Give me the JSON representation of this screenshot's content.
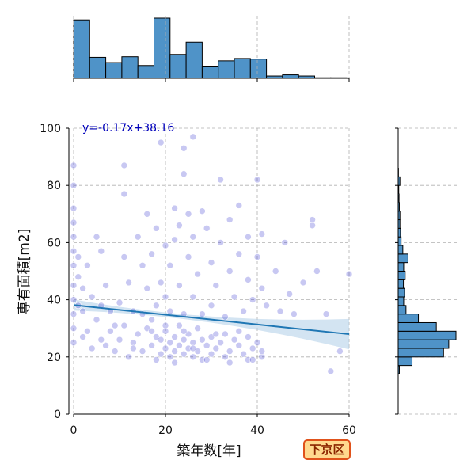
{
  "badge": "下京区",
  "chart_data": {
    "type": "scatter",
    "xlabel": "築年数[年]",
    "ylabel": "専有面積[m2]",
    "xlim": [
      0,
      60
    ],
    "ylim": [
      0,
      100
    ],
    "x_ticks": [
      0,
      20,
      40,
      60
    ],
    "y_ticks": [
      0,
      20,
      40,
      60,
      80,
      100
    ],
    "grid": true,
    "point_color": "#3a3ad0",
    "regression": {
      "label": "y=-0.17x+38.16",
      "slope": -0.17,
      "intercept": 38.16,
      "color": "#1f77b4",
      "ci_color": "#aecde8"
    },
    "histogram_color": "#4f93c8",
    "x_histogram": {
      "bin_edges": [
        0,
        3.5,
        7,
        10.5,
        14,
        17.5,
        21,
        24.5,
        28,
        31.5,
        35,
        38.5,
        42,
        45.5,
        49,
        52.5,
        56,
        59.5
      ],
      "counts": [
        100,
        36,
        27,
        37,
        22,
        103,
        41,
        62,
        21,
        30,
        34,
        33,
        4,
        6,
        4,
        1,
        1
      ]
    },
    "y_histogram": {
      "bin_edges": [
        14,
        17,
        20,
        23,
        26,
        29,
        32,
        35,
        38,
        41,
        44,
        47,
        50,
        53,
        56,
        59,
        62,
        65,
        68,
        71,
        74,
        77,
        80,
        83,
        86
      ],
      "counts": [
        4,
        48,
        157,
        175,
        200,
        132,
        70,
        27,
        19,
        22,
        18,
        24,
        19,
        34,
        16,
        10,
        8,
        6,
        6,
        4,
        3,
        2,
        6,
        1
      ]
    },
    "points": [
      {
        "x": 2,
        "y": 27
      },
      {
        "x": 4,
        "y": 23
      },
      {
        "x": 5,
        "y": 33
      },
      {
        "x": 7,
        "y": 24
      },
      {
        "x": 8,
        "y": 29
      },
      {
        "x": 9,
        "y": 22
      },
      {
        "x": 10,
        "y": 26
      },
      {
        "x": 11,
        "y": 31
      },
      {
        "x": 12,
        "y": 20
      },
      {
        "x": 13,
        "y": 25
      },
      {
        "x": 14,
        "y": 28
      },
      {
        "x": 15,
        "y": 22
      },
      {
        "x": 16,
        "y": 30
      },
      {
        "x": 17,
        "y": 24
      },
      {
        "x": 18,
        "y": 27
      },
      {
        "x": 19,
        "y": 21
      },
      {
        "x": 19,
        "y": 26
      },
      {
        "x": 20,
        "y": 23
      },
      {
        "x": 20,
        "y": 29
      },
      {
        "x": 21,
        "y": 20
      },
      {
        "x": 21,
        "y": 25
      },
      {
        "x": 22,
        "y": 27
      },
      {
        "x": 22,
        "y": 22
      },
      {
        "x": 23,
        "y": 31
      },
      {
        "x": 23,
        "y": 24
      },
      {
        "x": 24,
        "y": 21
      },
      {
        "x": 24,
        "y": 26
      },
      {
        "x": 25,
        "y": 28
      },
      {
        "x": 25,
        "y": 23
      },
      {
        "x": 26,
        "y": 20
      },
      {
        "x": 26,
        "y": 25
      },
      {
        "x": 27,
        "y": 30
      },
      {
        "x": 27,
        "y": 22
      },
      {
        "x": 28,
        "y": 26
      },
      {
        "x": 28,
        "y": 19
      },
      {
        "x": 29,
        "y": 24
      },
      {
        "x": 30,
        "y": 27
      },
      {
        "x": 30,
        "y": 21
      },
      {
        "x": 31,
        "y": 23
      },
      {
        "x": 32,
        "y": 25
      },
      {
        "x": 33,
        "y": 20
      },
      {
        "x": 33,
        "y": 28
      },
      {
        "x": 34,
        "y": 22
      },
      {
        "x": 35,
        "y": 26
      },
      {
        "x": 36,
        "y": 24
      },
      {
        "x": 37,
        "y": 21
      },
      {
        "x": 38,
        "y": 27
      },
      {
        "x": 38,
        "y": 19
      },
      {
        "x": 39,
        "y": 23
      },
      {
        "x": 40,
        "y": 25
      },
      {
        "x": 41,
        "y": 20
      },
      {
        "x": 41,
        "y": 22
      },
      {
        "x": 3,
        "y": 29
      },
      {
        "x": 6,
        "y": 26
      },
      {
        "x": 9,
        "y": 31
      },
      {
        "x": 13,
        "y": 23
      },
      {
        "x": 17,
        "y": 29
      },
      {
        "x": 18,
        "y": 19
      },
      {
        "x": 20,
        "y": 31
      },
      {
        "x": 22,
        "y": 18
      },
      {
        "x": 24,
        "y": 29
      },
      {
        "x": 26,
        "y": 23
      },
      {
        "x": 29,
        "y": 19
      },
      {
        "x": 31,
        "y": 28
      },
      {
        "x": 34,
        "y": 18
      },
      {
        "x": 36,
        "y": 29
      },
      {
        "x": 39,
        "y": 19
      },
      {
        "x": 0,
        "y": 25
      },
      {
        "x": 0,
        "y": 30
      },
      {
        "x": 0,
        "y": 35
      },
      {
        "x": 0,
        "y": 40
      },
      {
        "x": 0,
        "y": 45
      },
      {
        "x": 0,
        "y": 52
      },
      {
        "x": 0,
        "y": 57
      },
      {
        "x": 0,
        "y": 62
      },
      {
        "x": 0,
        "y": 67
      },
      {
        "x": 0,
        "y": 72
      },
      {
        "x": 0,
        "y": 80
      },
      {
        "x": 0,
        "y": 87
      },
      {
        "x": 1,
        "y": 38
      },
      {
        "x": 1,
        "y": 48
      },
      {
        "x": 1,
        "y": 55
      },
      {
        "x": 2,
        "y": 44
      },
      {
        "x": 2,
        "y": 36
      },
      {
        "x": 3,
        "y": 52
      },
      {
        "x": 4,
        "y": 41
      },
      {
        "x": 5,
        "y": 62
      },
      {
        "x": 6,
        "y": 38
      },
      {
        "x": 6,
        "y": 57
      },
      {
        "x": 7,
        "y": 45
      },
      {
        "x": 8,
        "y": 36
      },
      {
        "x": 10,
        "y": 39
      },
      {
        "x": 11,
        "y": 55
      },
      {
        "x": 11,
        "y": 77
      },
      {
        "x": 11,
        "y": 87
      },
      {
        "x": 12,
        "y": 46
      },
      {
        "x": 13,
        "y": 36
      },
      {
        "x": 14,
        "y": 62
      },
      {
        "x": 15,
        "y": 52
      },
      {
        "x": 15,
        "y": 35
      },
      {
        "x": 16,
        "y": 70
      },
      {
        "x": 16,
        "y": 44
      },
      {
        "x": 17,
        "y": 33
      },
      {
        "x": 17,
        "y": 56
      },
      {
        "x": 18,
        "y": 65
      },
      {
        "x": 18,
        "y": 38
      },
      {
        "x": 19,
        "y": 95
      },
      {
        "x": 19,
        "y": 46
      },
      {
        "x": 20,
        "y": 59
      },
      {
        "x": 20,
        "y": 41
      },
      {
        "x": 21,
        "y": 52
      },
      {
        "x": 21,
        "y": 36
      },
      {
        "x": 22,
        "y": 72
      },
      {
        "x": 22,
        "y": 61
      },
      {
        "x": 23,
        "y": 45
      },
      {
        "x": 23,
        "y": 66
      },
      {
        "x": 24,
        "y": 84
      },
      {
        "x": 24,
        "y": 93
      },
      {
        "x": 24,
        "y": 35
      },
      {
        "x": 25,
        "y": 70
      },
      {
        "x": 25,
        "y": 55
      },
      {
        "x": 26,
        "y": 97
      },
      {
        "x": 26,
        "y": 62
      },
      {
        "x": 26,
        "y": 41
      },
      {
        "x": 27,
        "y": 49
      },
      {
        "x": 28,
        "y": 71
      },
      {
        "x": 28,
        "y": 35
      },
      {
        "x": 29,
        "y": 65
      },
      {
        "x": 30,
        "y": 53
      },
      {
        "x": 30,
        "y": 38
      },
      {
        "x": 31,
        "y": 45
      },
      {
        "x": 32,
        "y": 82
      },
      {
        "x": 32,
        "y": 60
      },
      {
        "x": 33,
        "y": 34
      },
      {
        "x": 34,
        "y": 50
      },
      {
        "x": 34,
        "y": 68
      },
      {
        "x": 35,
        "y": 41
      },
      {
        "x": 36,
        "y": 56
      },
      {
        "x": 36,
        "y": 73
      },
      {
        "x": 37,
        "y": 36
      },
      {
        "x": 38,
        "y": 62
      },
      {
        "x": 38,
        "y": 47
      },
      {
        "x": 39,
        "y": 40
      },
      {
        "x": 40,
        "y": 55
      },
      {
        "x": 40,
        "y": 82
      },
      {
        "x": 41,
        "y": 44
      },
      {
        "x": 41,
        "y": 63
      },
      {
        "x": 42,
        "y": 38
      },
      {
        "x": 44,
        "y": 50
      },
      {
        "x": 45,
        "y": 36
      },
      {
        "x": 46,
        "y": 60
      },
      {
        "x": 47,
        "y": 42
      },
      {
        "x": 48,
        "y": 35
      },
      {
        "x": 50,
        "y": 46
      },
      {
        "x": 52,
        "y": 66
      },
      {
        "x": 52,
        "y": 68
      },
      {
        "x": 53,
        "y": 50
      },
      {
        "x": 55,
        "y": 35
      },
      {
        "x": 56,
        "y": 15
      },
      {
        "x": 58,
        "y": 22
      },
      {
        "x": 60,
        "y": 49
      }
    ]
  }
}
